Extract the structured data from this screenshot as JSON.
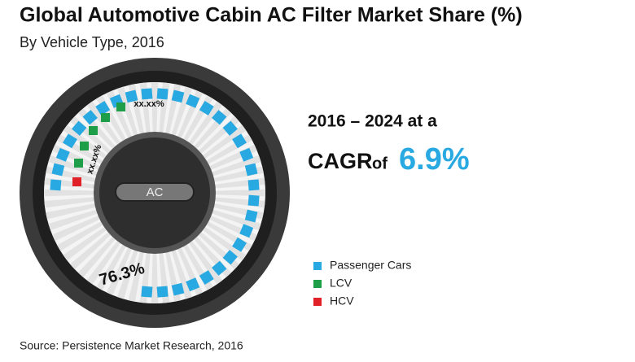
{
  "chart_data": {
    "type": "dial",
    "title": "Global Automotive Cabin AC Filter Market Share (%)",
    "subtitle": "By Vehicle Type, 2016",
    "series": [
      {
        "name": "Passenger Cars",
        "color": "#29a9e1",
        "values": [
          76.3
        ],
        "value_labels": [
          "76.3%"
        ]
      },
      {
        "name": "LCV",
        "color": "#1e9e48",
        "values": [
          null
        ],
        "value_labels": [
          "xx.xx%"
        ]
      },
      {
        "name": "HCV",
        "color": "#e02127",
        "values": [
          null
        ],
        "value_labels": [
          "xx.xx%"
        ]
      }
    ],
    "center_label": "AC",
    "cagr_period": "2016 – 2024 at a",
    "cagr_prefix": "CAGR",
    "cagr_of": "of",
    "cagr_value": "6.9%",
    "source": "Source: Persistence Market Research, 2016"
  }
}
